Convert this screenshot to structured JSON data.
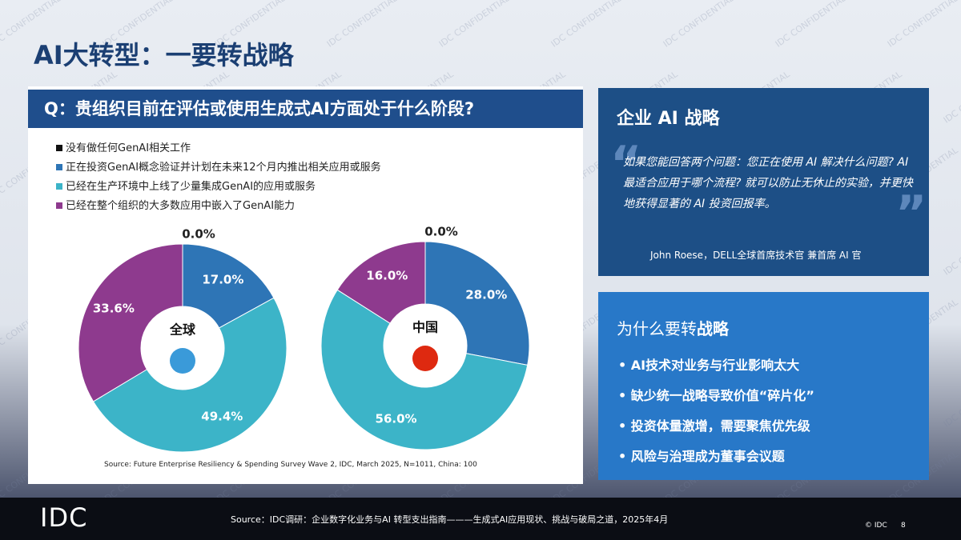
{
  "title": "AI大转型：一要转战略",
  "question": "Q：贵组织目前在评估或使用生成式AI方面处于什么阶段?",
  "chart_data": {
    "type": "pie",
    "categories": [
      "没有做任何GenAI相关工作",
      "正在投资GenAI概念验证并计划在未来12个月内推出相关应用或服务",
      "已经在生产环境中上线了少量集成GenAI的应用或服务",
      "已经在整个组织的大多数应用中嵌入了GenAI能力"
    ],
    "colors": [
      "#111111",
      "#2e75b6",
      "#3cb4c8",
      "#8e3a8e"
    ],
    "series": [
      {
        "name": "全球",
        "values": [
          0.0,
          17.0,
          49.4,
          33.6
        ],
        "value_labels": [
          "0.0%",
          "17.0%",
          "49.4%",
          "33.6%"
        ]
      },
      {
        "name": "中国",
        "values": [
          0.0,
          28.0,
          56.0,
          16.0
        ],
        "value_labels": [
          "0.0%",
          "28.0%",
          "56.0%",
          "16.0%"
        ]
      }
    ],
    "source": "Source: Future Enterprise Resiliency & Spending Survey Wave 2, IDC, March 2025, N=1011, China: 100"
  },
  "strategy_panel": {
    "heading": "企业 AI 战略",
    "quote": "如果您能回答两个问题：您正在使用 AI 解决什么问题? AI 最适合应用于哪个流程? 就可以防止无休止的实验，并更快地获得显著的 AI 投资回报率。",
    "attribution": "John Roese，DELL全球首席技术官 兼首席 AI 官"
  },
  "reasons_panel": {
    "heading": [
      "为什么要转",
      "战略"
    ],
    "bullets": [
      "AI技术对业务与行业影响太大",
      "缺少统一战略导致价值“碎片化”",
      "投资体量激增，需要聚焦优先级",
      "风险与治理成为董事会议题"
    ]
  },
  "footer": {
    "logo": "IDC",
    "source": "Source：IDC调研：企业数字化业务与AI 转型支出指南———生成式AI应用现状、挑战与破局之道，2025年4月",
    "copyright": "© IDC",
    "page": "8"
  },
  "watermark": "IDC CONFIDENTIAL"
}
